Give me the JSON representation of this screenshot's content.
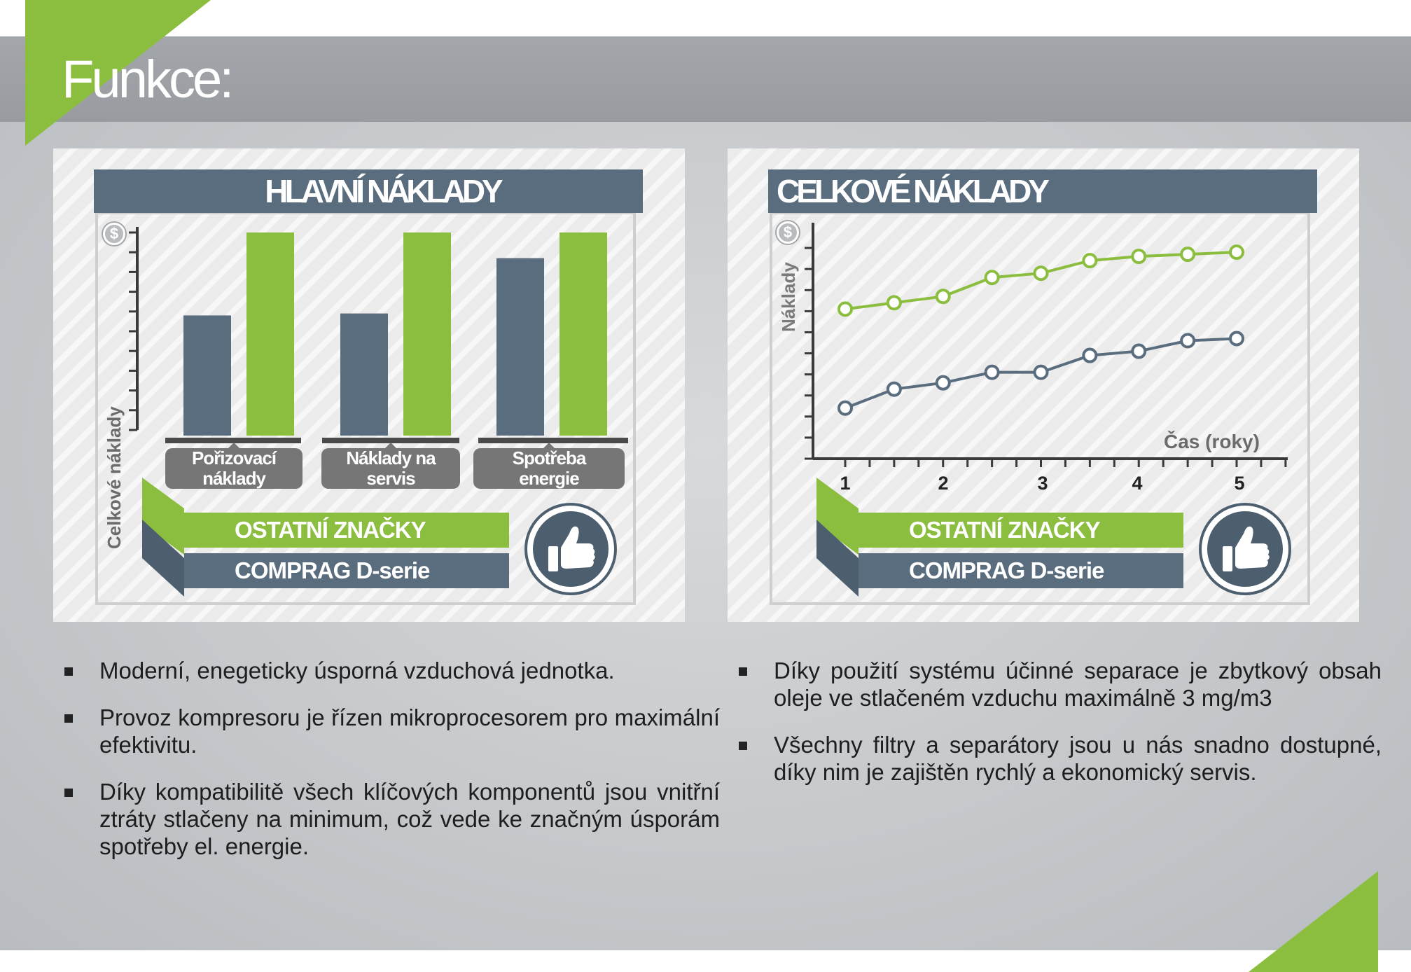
{
  "page": {
    "title": "Funkce:",
    "colors": {
      "accent_green": "#8bbe3f",
      "slate_blue": "#5a6d7e",
      "header_gray": "#9a9da1"
    }
  },
  "panels": {
    "left": {
      "header": "HLAVNÍ NÁKLADY",
      "dollar_icon": "$",
      "legend": {
        "others": "OSTATNÍ ZNAČKY",
        "comprag": "COMPRAG D-serie",
        "badge_icon": "thumbs-up-icon"
      }
    },
    "right": {
      "header": "CELKOVÉ NÁKLADY",
      "dollar_icon": "$",
      "legend": {
        "others": "OSTATNÍ ZNAČKY",
        "comprag": "COMPRAG D-serie",
        "badge_icon": "thumbs-up-icon"
      }
    }
  },
  "chart_data": [
    {
      "type": "bar",
      "title": "HLAVNÍ NÁKLADY",
      "ylabel": "Celkové náklady",
      "xlabel": "",
      "categories": [
        "Pořizovací\nnáklady",
        "Náklady na\nservis",
        "Spotřeba\nenergie"
      ],
      "series": [
        {
          "name": "COMPRAG D-serie",
          "color": "#5a6d7e",
          "values": [
            5.8,
            5.9,
            8.7
          ]
        },
        {
          "name": "OSTATNÍ ZNAČKY",
          "color": "#8bbe3f",
          "values": [
            10,
            10,
            10
          ]
        }
      ],
      "ylim": [
        0,
        10
      ],
      "y_ticks": 11,
      "grid": false,
      "legend": "bottom"
    },
    {
      "type": "line",
      "title": "CELKOVÉ NÁKLADY",
      "ylabel": "Náklady",
      "xlabel": "Čas (roky)",
      "x": [
        1,
        1.5,
        2,
        2.5,
        3,
        3.5,
        4,
        4.5,
        5
      ],
      "x_tick_labels": [
        "1",
        "2",
        "3",
        "4",
        "5"
      ],
      "series": [
        {
          "name": "OSTATNÍ ZNAČKY",
          "color": "#8bbe3f",
          "values": [
            7.1,
            7.4,
            7.7,
            8.6,
            8.8,
            9.4,
            9.6,
            9.7,
            9.8
          ]
        },
        {
          "name": "COMPRAG D-serie",
          "color": "#5a6d7e",
          "values": [
            2.4,
            3.3,
            3.6,
            4.1,
            4.1,
            4.9,
            5.1,
            5.6,
            5.7
          ]
        }
      ],
      "ylim": [
        0,
        11
      ],
      "grid": false,
      "legend": "bottom"
    }
  ],
  "bullets": {
    "left": [
      "Moderní, enegeticky úsporná vzduchová jednotka.",
      "Provoz kompresoru je řízen mikroprocesorem pro maximální efektivitu.",
      "Díky kompatibilitě všech klíčových komponentů jsou vnitřní ztráty stlačeny na minimum, což vede ke značným úsporám spotřeby el. energie."
    ],
    "right": [
      "Díky použití systému účinné separace je zbytkový obsah oleje ve stlačeném vzduchu maximálně 3 mg/m3",
      "Všechny filtry a separátory jsou u nás snadno dostupné, díky nim je zajištěn rychlý a ekonomický servis."
    ]
  }
}
